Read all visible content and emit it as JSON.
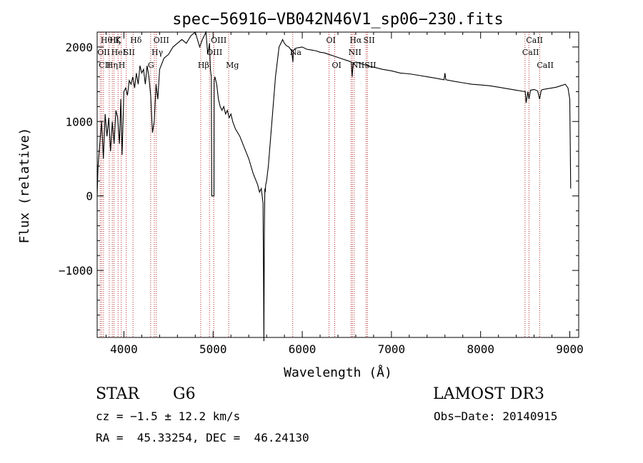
{
  "chart_data": {
    "type": "line",
    "title": "spec−56916−VB042N46V1_sp06−230.fits",
    "xlabel": "Wavelength (Å)",
    "ylabel": "Flux (relative)",
    "xlim": [
      3700,
      9100
    ],
    "ylim": [
      -1900,
      2200
    ],
    "xticks": [
      4000,
      5000,
      6000,
      7000,
      8000,
      9000
    ],
    "yticks": [
      0,
      1000,
      2000,
      -1000
    ],
    "ytick_labels": [
      "0",
      "1000",
      "2000",
      "−1000"
    ],
    "grid": false,
    "series": [
      {
        "x": [
          3700,
          3710,
          3730,
          3750,
          3770,
          3790,
          3810,
          3830,
          3850,
          3870,
          3890,
          3910,
          3930,
          3950,
          3965,
          3980,
          4000,
          4020,
          4040,
          4060,
          4080,
          4100,
          4120,
          4140,
          4160,
          4180,
          4200,
          4220,
          4240,
          4260,
          4280,
          4300,
          4320,
          4340,
          4360,
          4380,
          4400,
          4450,
          4500,
          4550,
          4600,
          4650,
          4700,
          4750,
          4800,
          4850,
          4880,
          4900,
          4920,
          4940,
          4960,
          4970,
          4980,
          4985,
          4990,
          5010,
          5012,
          5020,
          5040,
          5060,
          5080,
          5100,
          5120,
          5140,
          5160,
          5180,
          5200,
          5220,
          5250,
          5300,
          5350,
          5400,
          5450,
          5500,
          5520,
          5540,
          5560,
          5570,
          5575,
          5580,
          5585,
          5590,
          5600,
          5620,
          5640,
          5660,
          5680,
          5700,
          5720,
          5740,
          5760,
          5780,
          5800,
          5820,
          5850,
          5880,
          5895,
          5900,
          5920,
          5950,
          6000,
          6050,
          6100,
          6150,
          6200,
          6250,
          6300,
          6350,
          6400,
          6450,
          6500,
          6550,
          6560,
          6565,
          6575,
          6600,
          6650,
          6700,
          6750,
          6800,
          6900,
          7000,
          7100,
          7200,
          7300,
          7400,
          7500,
          7590,
          7600,
          7610,
          7700,
          7800,
          7900,
          8000,
          8100,
          8200,
          8300,
          8400,
          8498,
          8500,
          8510,
          8530,
          8542,
          8560,
          8600,
          8640,
          8662,
          8680,
          8700,
          8750,
          8800,
          8850,
          8900,
          8950,
          8980,
          9000,
          9010
        ],
        "y": [
          0,
          400,
          700,
          1000,
          500,
          1100,
          800,
          1050,
          600,
          1000,
          700,
          1150,
          1050,
          700,
          1300,
          550,
          1400,
          1450,
          1350,
          1550,
          1500,
          1600,
          1450,
          1650,
          1500,
          1750,
          1650,
          1700,
          1500,
          1750,
          1600,
          1350,
          850,
          1000,
          1500,
          1300,
          1700,
          1850,
          1900,
          2000,
          2050,
          2100,
          2050,
          2150,
          2200,
          2000,
          2100,
          2150,
          2200,
          1900,
          2050,
          1700,
          1600,
          0,
          0,
          0,
          1550,
          1600,
          1500,
          1300,
          1200,
          1150,
          1200,
          1100,
          1150,
          1050,
          1100,
          1000,
          900,
          800,
          650,
          500,
          300,
          150,
          50,
          100,
          -100,
          -1950,
          -500,
          100,
          50,
          150,
          200,
          400,
          700,
          1000,
          1300,
          1600,
          1800,
          2000,
          2050,
          2100,
          2050,
          2020,
          2000,
          1950,
          1800,
          1950,
          1980,
          1990,
          2000,
          1970,
          1960,
          1950,
          1930,
          1920,
          1900,
          1880,
          1860,
          1840,
          1820,
          1800,
          1600,
          1700,
          1780,
          1800,
          1780,
          1760,
          1740,
          1730,
          1700,
          1680,
          1650,
          1640,
          1620,
          1600,
          1580,
          1560,
          1650,
          1560,
          1540,
          1520,
          1500,
          1490,
          1480,
          1460,
          1440,
          1420,
          1400,
          1410,
          1250,
          1400,
          1300,
          1420,
          1430,
          1410,
          1300,
          1420,
          1430,
          1440,
          1450,
          1460,
          1480,
          1500,
          1450,
          1300,
          100
        ]
      }
    ],
    "line_markers": [
      {
        "x": 3734,
        "label": "OII",
        "row": 1
      },
      {
        "x": 3750,
        "label": "CII",
        "row": 2
      },
      {
        "x": 3771,
        "label": "Hθ",
        "row": 0
      },
      {
        "x": 3835,
        "label": "Hη",
        "row": 2
      },
      {
        "x": 3870,
        "label": "Hζ",
        "row": 0
      },
      {
        "x": 3889,
        "label": "HeI",
        "row": 1
      },
      {
        "x": 3934,
        "label": "K",
        "row": 0
      },
      {
        "x": 3970,
        "label": "H",
        "row": 2
      },
      {
        "x": 4026,
        "label": "SII",
        "row": 1
      },
      {
        "x": 4102,
        "label": "Hδ",
        "row": 0
      },
      {
        "x": 4300,
        "label": "G",
        "row": 2
      },
      {
        "x": 4341,
        "label": "Hγ",
        "row": 1
      },
      {
        "x": 4363,
        "label": "OIII",
        "row": 0
      },
      {
        "x": 4861,
        "label": "Hβ",
        "row": 2
      },
      {
        "x": 4959,
        "label": "OIII",
        "row": 1
      },
      {
        "x": 5007,
        "label": "OIII",
        "row": 0
      },
      {
        "x": 5175,
        "label": "Mg",
        "row": 2
      },
      {
        "x": 5893,
        "label": "Na",
        "row": 1
      },
      {
        "x": 6300,
        "label": "OI",
        "row": 0
      },
      {
        "x": 6364,
        "label": "OI",
        "row": 2
      },
      {
        "x": 6548,
        "label": "NII",
        "row": 1
      },
      {
        "x": 6563,
        "label": "Hα",
        "row": 0
      },
      {
        "x": 6583,
        "label": "NII",
        "row": 2
      },
      {
        "x": 6716,
        "label": "SII",
        "row": 0
      },
      {
        "x": 6731,
        "label": "SII",
        "row": 2
      },
      {
        "x": 8498,
        "label": "CaII",
        "row": 1
      },
      {
        "x": 8542,
        "label": "CaII",
        "row": 0
      },
      {
        "x": 8662,
        "label": "CaII",
        "row": 2
      }
    ]
  },
  "footer": {
    "object_class": "STAR",
    "subclass": "G6",
    "cz": "cz = −1.5 ± 12.2 km/s",
    "coords": "RA =  45.33254, DEC =  46.24130",
    "survey": "LAMOST DR3",
    "obs_date": "Obs−Date: 20140915"
  }
}
